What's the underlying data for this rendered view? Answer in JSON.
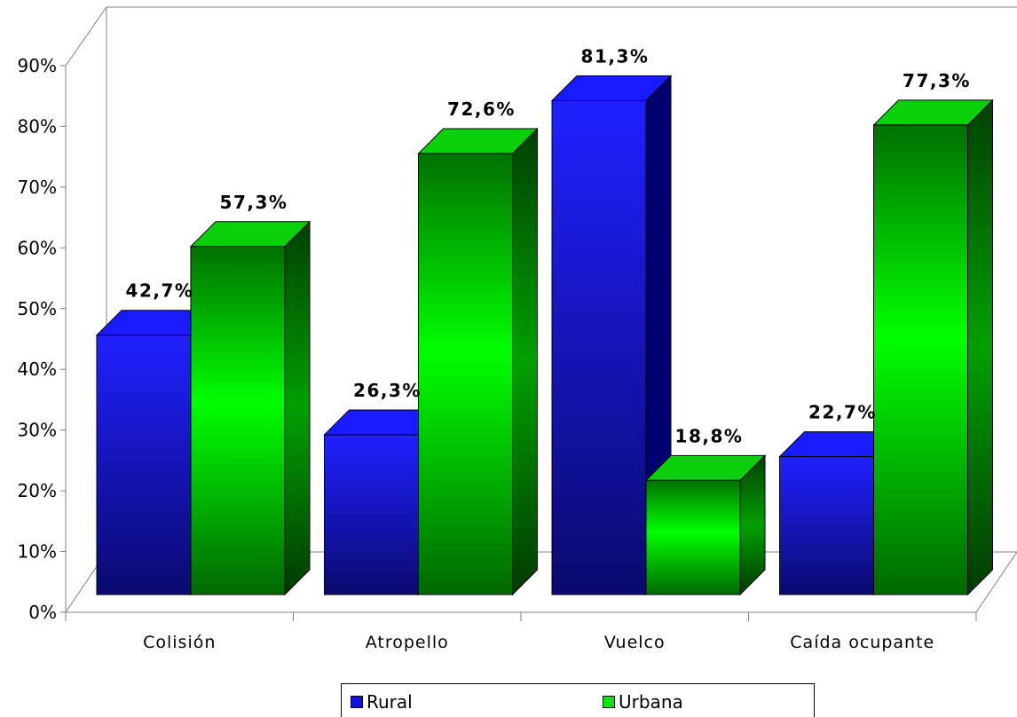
{
  "chart_data": {
    "type": "bar",
    "categories": [
      "Colisión",
      "Atropello",
      "Vuelco",
      "Caída ocupante"
    ],
    "series": [
      {
        "name": "Rural",
        "values": [
          42.7,
          26.3,
          81.3,
          22.7
        ],
        "labels": [
          "42,7%",
          "26,3%",
          "81,3%",
          "22,7%"
        ],
        "color": "#1010e0"
      },
      {
        "name": "Urbana",
        "values": [
          57.3,
          72.6,
          18.8,
          77.3
        ],
        "labels": [
          "57,3%",
          "72,6%",
          "18,8%",
          "77,3%"
        ],
        "color": "#10e010"
      }
    ],
    "yticks": [
      "0%",
      "10%",
      "20%",
      "30%",
      "40%",
      "50%",
      "60%",
      "70%",
      "80%",
      "90%"
    ],
    "ylim": [
      0,
      90
    ],
    "legend": "bottom",
    "grid": false,
    "style": "3d-clustered-column"
  },
  "legend": {
    "items": [
      {
        "label": "Rural",
        "color": "#1010e0"
      },
      {
        "label": "Urbana",
        "color": "#10e010"
      }
    ]
  }
}
